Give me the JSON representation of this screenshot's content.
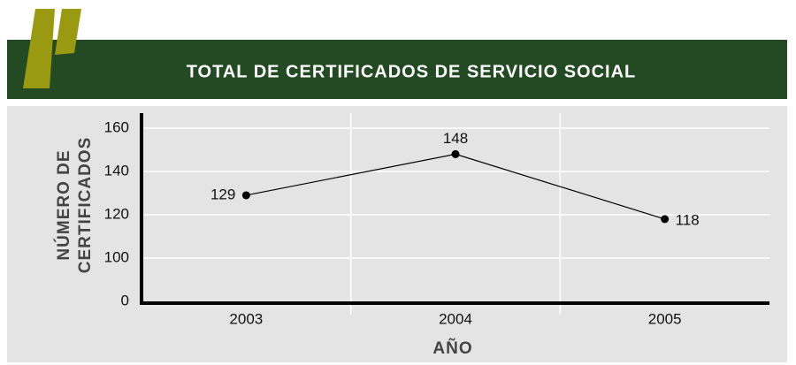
{
  "chart_data": {
    "type": "line",
    "title": "TOTAL DE CERTIFICADOS DE SERVICIO SOCIAL",
    "y_axis_label": [
      "NÚMERO DE",
      "CERTIFICADOS"
    ],
    "x_axis_label": "AÑO",
    "categories": [
      "2003",
      "2004",
      "2005"
    ],
    "values": [
      129,
      148,
      118
    ],
    "color": "#000000",
    "ylim": [
      0,
      160
    ],
    "yticks": [
      0,
      100,
      120,
      140,
      160
    ],
    "grid": true
  }
}
